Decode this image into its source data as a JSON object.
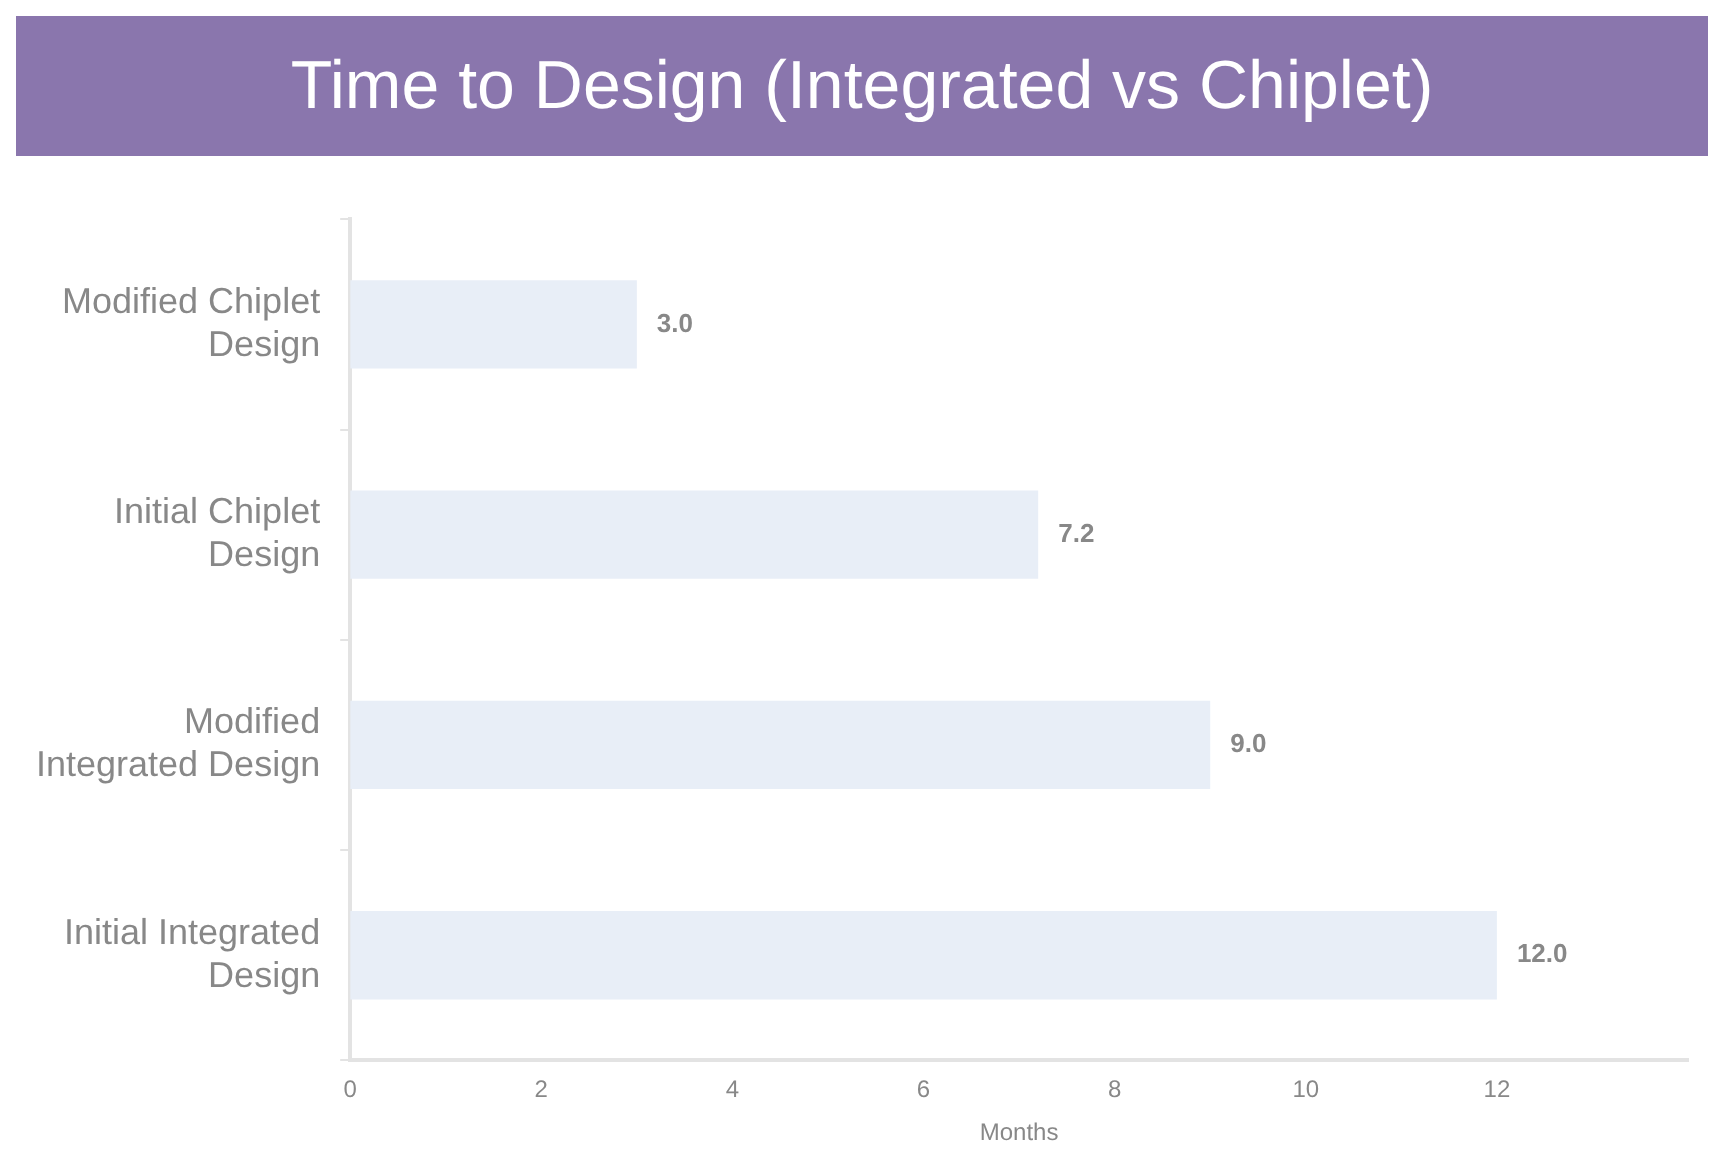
{
  "chart_data": {
    "type": "bar",
    "orientation": "horizontal",
    "title": "Time to Design (Integrated vs Chiplet)",
    "xlabel": "Months",
    "categories": [
      "Modified Chiplet Design",
      "Initial Chiplet Design",
      "Modified Integrated Design",
      "Initial Integrated Design"
    ],
    "values": [
      3.0,
      7.2,
      9.0,
      12.0
    ],
    "color": "#e8eef7",
    "xlim": [
      0,
      14
    ],
    "xticks": [
      0,
      2,
      4,
      6,
      8,
      10,
      12
    ],
    "grid": false,
    "legend": false,
    "value_labels": [
      "3.0",
      "7.2",
      "9.0",
      "12.0"
    ]
  }
}
